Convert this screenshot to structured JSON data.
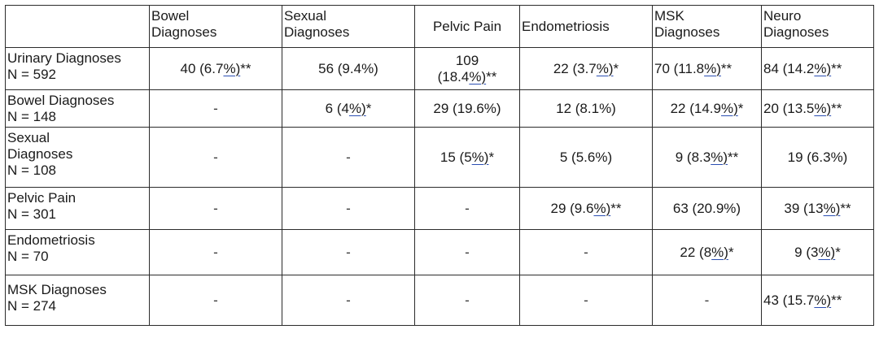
{
  "columns": [
    {
      "lines": [
        "Bowel",
        "Diagnoses"
      ]
    },
    {
      "lines": [
        "Sexual",
        "Diagnoses"
      ]
    },
    {
      "lines": [
        "Pelvic Pain"
      ]
    },
    {
      "lines": [
        "Endometriosis"
      ]
    },
    {
      "lines": [
        "MSK",
        "Diagnoses"
      ]
    },
    {
      "lines": [
        "Neuro",
        "Diagnoses"
      ]
    }
  ],
  "rows": [
    {
      "label_lines": [
        "Urinary Diagnoses",
        "N = 592"
      ],
      "cells": [
        {
          "pre": "40 (6.7",
          "link": "%)",
          "post": "**"
        },
        {
          "pre": "56 (9.4%)",
          "link": "",
          "post": ""
        },
        {
          "lines": [
            "109",
            "(18.4%)**"
          ],
          "link_line": 1,
          "pre": "(18.4",
          "link": "%)",
          "post": "**"
        },
        {
          "pre": "22 (3.7",
          "link": "%)",
          "post": "*"
        },
        {
          "pre": "70 (11.8",
          "link": "%)",
          "post": "**"
        },
        {
          "pre": "84 (14.2",
          "link": "%)",
          "post": "**"
        }
      ]
    },
    {
      "label_lines": [
        "Bowel Diagnoses",
        "N = 148"
      ],
      "cells": [
        {
          "pre": "-",
          "link": "",
          "post": ""
        },
        {
          "pre": "6 (4",
          "link": "%)",
          "post": "*"
        },
        {
          "pre": "29 (19.6%)",
          "link": "",
          "post": ""
        },
        {
          "pre": "12 (8.1%)",
          "link": "",
          "post": ""
        },
        {
          "pre": "22 (14.9",
          "link": "%)",
          "post": "*"
        },
        {
          "pre": "20 (13.5",
          "link": "%)",
          "post": "**"
        }
      ]
    },
    {
      "label_lines": [
        "Sexual",
        "Diagnoses",
        "N = 108"
      ],
      "cells": [
        {
          "pre": "-",
          "link": "",
          "post": ""
        },
        {
          "pre": "-",
          "link": "",
          "post": ""
        },
        {
          "pre": "15 (5",
          "link": "%)",
          "post": "*"
        },
        {
          "pre": "5 (5.6%)",
          "link": "",
          "post": ""
        },
        {
          "pre": "9 (8.3",
          "link": "%)",
          "post": "**"
        },
        {
          "pre": "19 (6.3%)",
          "link": "",
          "post": ""
        }
      ]
    },
    {
      "label_lines": [
        "Pelvic Pain",
        "N = 301"
      ],
      "cells": [
        {
          "pre": "-",
          "link": "",
          "post": ""
        },
        {
          "pre": "-",
          "link": "",
          "post": ""
        },
        {
          "pre": "-",
          "link": "",
          "post": ""
        },
        {
          "pre": "29 (9.6",
          "link": "%)",
          "post": "**"
        },
        {
          "pre": "63 (20.9%)",
          "link": "",
          "post": ""
        },
        {
          "pre": "39 (13",
          "link": "%)",
          "post": "**"
        }
      ]
    },
    {
      "label_lines": [
        "Endometriosis",
        "N = 70"
      ],
      "cells": [
        {
          "pre": "-",
          "link": "",
          "post": ""
        },
        {
          "pre": "-",
          "link": "",
          "post": ""
        },
        {
          "pre": "-",
          "link": "",
          "post": ""
        },
        {
          "pre": "-",
          "link": "",
          "post": ""
        },
        {
          "pre": "22 (8",
          "link": "%)",
          "post": "*"
        },
        {
          "pre": "9 (3",
          "link": "%)",
          "post": "*"
        }
      ]
    },
    {
      "label_lines": [
        "MSK Diagnoses",
        "N = 274"
      ],
      "cells": [
        {
          "pre": "-",
          "link": "",
          "post": ""
        },
        {
          "pre": "-",
          "link": "",
          "post": ""
        },
        {
          "pre": "-",
          "link": "",
          "post": ""
        },
        {
          "pre": "-",
          "link": "",
          "post": ""
        },
        {
          "pre": "-",
          "link": "",
          "post": ""
        },
        {
          "pre": "43 (15.7",
          "link": "%)",
          "post": "**"
        }
      ]
    }
  ]
}
